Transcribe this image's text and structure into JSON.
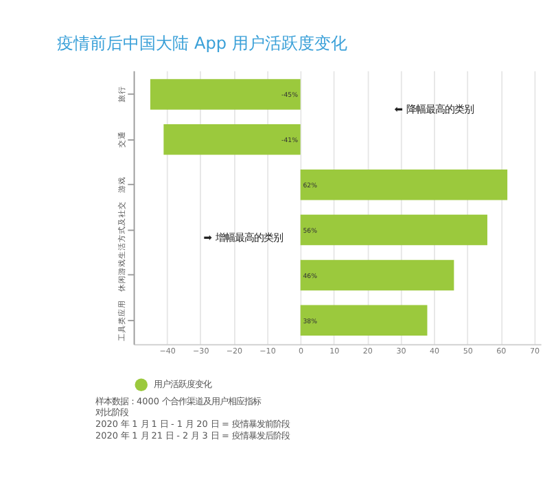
{
  "chart_data": {
    "type": "bar",
    "orientation": "horizontal",
    "title": "疫情前后中国大陆 App 用户活跃度变化",
    "categories": [
      "旅行",
      "交通",
      "游戏",
      "生活方式及社交",
      "休闲游戏",
      "工具类应用"
    ],
    "series": [
      {
        "name": "用户活跃度变化",
        "color": "#9bc93d",
        "values": [
          -45,
          -41,
          62,
          56,
          46,
          38
        ],
        "value_labels": [
          "-45%",
          "-41%",
          "62%",
          "56%",
          "46%",
          "38%"
        ]
      }
    ],
    "xlim": [
      -50,
      72
    ],
    "xticks": [
      -40,
      -30,
      -20,
      -10,
      0,
      10,
      20,
      30,
      40,
      50,
      60,
      70
    ],
    "grid": "x",
    "legend": "bottom",
    "annotations": [
      "⬅ 降幅最高的类别",
      "➡ 增幅最高的类别",
      "样本数据：4000 个合作渠道及用户相应指标",
      "对比阶段",
      "2020 年 1 月 1 日 - 1 月 20 日 = 疫情暴发前阶段",
      "2020 年 1 月 21 日 - 2 月 3 日 = 疫情暴发后阶段"
    ]
  }
}
